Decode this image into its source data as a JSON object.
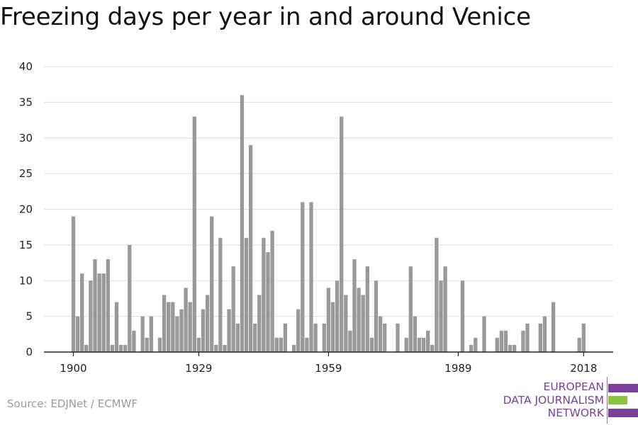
{
  "chart_data": {
    "type": "bar",
    "title": "Freezing days per year in and around Venice",
    "xlabel": "",
    "ylabel": "",
    "ylim": [
      0,
      40
    ],
    "yticks": [
      0,
      5,
      10,
      15,
      20,
      25,
      30,
      35,
      40
    ],
    "xticks": [
      1900,
      1929,
      1959,
      1989,
      2018
    ],
    "grid": true,
    "bar_color": "#999999",
    "categories": [
      1900,
      1901,
      1902,
      1903,
      1904,
      1905,
      1906,
      1907,
      1908,
      1909,
      1910,
      1911,
      1912,
      1913,
      1914,
      1915,
      1916,
      1917,
      1918,
      1919,
      1920,
      1921,
      1922,
      1923,
      1924,
      1925,
      1926,
      1927,
      1928,
      1929,
      1930,
      1931,
      1932,
      1933,
      1934,
      1935,
      1936,
      1937,
      1938,
      1939,
      1940,
      1941,
      1942,
      1943,
      1944,
      1945,
      1946,
      1947,
      1948,
      1949,
      1950,
      1951,
      1952,
      1953,
      1954,
      1955,
      1956,
      1957,
      1958,
      1959,
      1960,
      1961,
      1962,
      1963,
      1964,
      1965,
      1966,
      1967,
      1968,
      1969,
      1970,
      1971,
      1972,
      1973,
      1974,
      1975,
      1976,
      1977,
      1978,
      1979,
      1980,
      1981,
      1982,
      1983,
      1984,
      1985,
      1986,
      1987,
      1988,
      1989,
      1990,
      1991,
      1992,
      1993,
      1994,
      1995,
      1996,
      1997,
      1998,
      1999,
      2000,
      2001,
      2002,
      2003,
      2004,
      2005,
      2006,
      2007,
      2008,
      2009,
      2010,
      2011,
      2012,
      2013,
      2014,
      2015,
      2016,
      2017,
      2018
    ],
    "values": [
      19,
      5,
      11,
      1,
      10,
      13,
      11,
      11,
      13,
      1,
      7,
      1,
      1,
      15,
      3,
      0,
      5,
      2,
      5,
      0,
      2,
      8,
      7,
      7,
      5,
      6,
      9,
      7,
      33,
      2,
      6,
      8,
      19,
      1,
      16,
      1,
      6,
      12,
      4,
      36,
      16,
      29,
      4,
      8,
      16,
      14,
      17,
      2,
      2,
      4,
      0,
      1,
      6,
      21,
      2,
      21,
      4,
      0,
      4,
      9,
      7,
      10,
      33,
      8,
      3,
      13,
      9,
      8,
      12,
      2,
      10,
      5,
      4,
      0,
      0,
      4,
      0,
      2,
      12,
      5,
      2,
      2,
      3,
      1,
      16,
      10,
      12,
      0,
      0,
      0,
      10,
      0,
      1,
      2,
      0,
      5,
      0,
      0,
      2,
      3,
      3,
      1,
      1,
      0,
      3,
      4,
      0,
      0,
      4,
      5,
      0,
      7,
      0,
      0,
      0,
      0,
      0,
      2,
      4
    ]
  },
  "source": "Source: EDJNet / ECMWF",
  "logo": {
    "lines": [
      "EUROPEAN",
      "DATA JOURNALISM",
      "NETWORK"
    ],
    "colors": {
      "brand_purple": "#7b3f9b",
      "bar_purple": "#7b3f9b",
      "bar_green": "#8bc53f"
    }
  }
}
